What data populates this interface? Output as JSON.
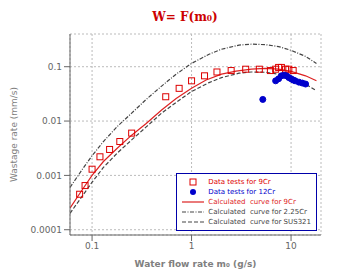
{
  "chart_data": {
    "type": "line",
    "title": "W= F(m₀)",
    "xlabel": "Water flow rate m₀ (g/s)",
    "ylabel": "Wastage rate (mm/s)",
    "log": true,
    "grid": true,
    "legend": "lower right",
    "xlim": [
      0.06,
      20
    ],
    "ylim": [
      8e-05,
      0.4
    ],
    "xticks": [
      0.1,
      1,
      10
    ],
    "yticks": [
      0.0001,
      0.001,
      0.01,
      0.1
    ],
    "series": [
      {
        "name": "Data tests for 9Cr",
        "type": "scatter",
        "marker": "open_square",
        "color": "#dd0000",
        "x": [
          0.075,
          0.085,
          0.1,
          0.12,
          0.15,
          0.19,
          0.25,
          0.55,
          0.75,
          1.0,
          1.35,
          1.8,
          2.5,
          3.5,
          4.8,
          6.2,
          7.0,
          7.5,
          8.0,
          8.8,
          9.5,
          10.5
        ],
        "values": [
          0.00045,
          0.00065,
          0.0013,
          0.0022,
          0.003,
          0.0042,
          0.006,
          0.028,
          0.04,
          0.055,
          0.068,
          0.08,
          0.085,
          0.09,
          0.09,
          0.085,
          0.09,
          0.097,
          0.097,
          0.09,
          0.09,
          0.085
        ]
      },
      {
        "name": "Data tests for 12Cr",
        "type": "scatter",
        "marker": "circle",
        "color": "#0000cc",
        "x": [
          5.2,
          7.0,
          7.5,
          8.0,
          8.5,
          9.0,
          9.5,
          10.0,
          10.5,
          11.0,
          12.0,
          13.0,
          14.0
        ],
        "values": [
          0.025,
          0.055,
          0.06,
          0.068,
          0.07,
          0.068,
          0.063,
          0.06,
          0.057,
          0.055,
          0.052,
          0.05,
          0.048
        ]
      },
      {
        "name": "Calculated  curve for 9Cr",
        "type": "line",
        "line_style": "solid",
        "color": "#dd2222",
        "x": [
          0.06,
          0.08,
          0.1,
          0.13,
          0.18,
          0.25,
          0.35,
          0.5,
          0.7,
          1.0,
          1.4,
          2.0,
          2.8,
          4.0,
          5.5,
          7.5,
          10.0,
          14.0,
          18.0
        ],
        "values": [
          0.00025,
          0.00055,
          0.001,
          0.0018,
          0.0032,
          0.0055,
          0.009,
          0.016,
          0.026,
          0.04,
          0.057,
          0.073,
          0.083,
          0.09,
          0.093,
          0.09,
          0.082,
          0.068,
          0.055
        ]
      },
      {
        "name": "Calculated  curve for 2.25Cr",
        "type": "line",
        "line_style": "dashdot",
        "color": "#444444",
        "x": [
          0.06,
          0.08,
          0.1,
          0.13,
          0.18,
          0.25,
          0.35,
          0.5,
          0.7,
          1.0,
          1.5,
          2.0,
          3.0,
          4.0,
          5.5,
          7.5,
          10.0,
          14.0,
          18.0
        ],
        "values": [
          0.0006,
          0.0013,
          0.0023,
          0.0042,
          0.008,
          0.014,
          0.025,
          0.044,
          0.073,
          0.115,
          0.17,
          0.21,
          0.25,
          0.26,
          0.255,
          0.235,
          0.2,
          0.155,
          0.115
        ]
      },
      {
        "name": "Calculated  curve for SUS321",
        "type": "line",
        "line_style": "dashed",
        "color": "#444444",
        "x": [
          0.06,
          0.08,
          0.1,
          0.13,
          0.18,
          0.25,
          0.35,
          0.5,
          0.7,
          1.0,
          1.5,
          2.0,
          3.0,
          4.0,
          5.5,
          7.5,
          10.0,
          14.0,
          18.0
        ],
        "values": [
          0.0002,
          0.00042,
          0.00075,
          0.0014,
          0.0026,
          0.0045,
          0.0078,
          0.014,
          0.022,
          0.035,
          0.051,
          0.063,
          0.076,
          0.08,
          0.079,
          0.073,
          0.062,
          0.048,
          0.036
        ]
      }
    ]
  }
}
